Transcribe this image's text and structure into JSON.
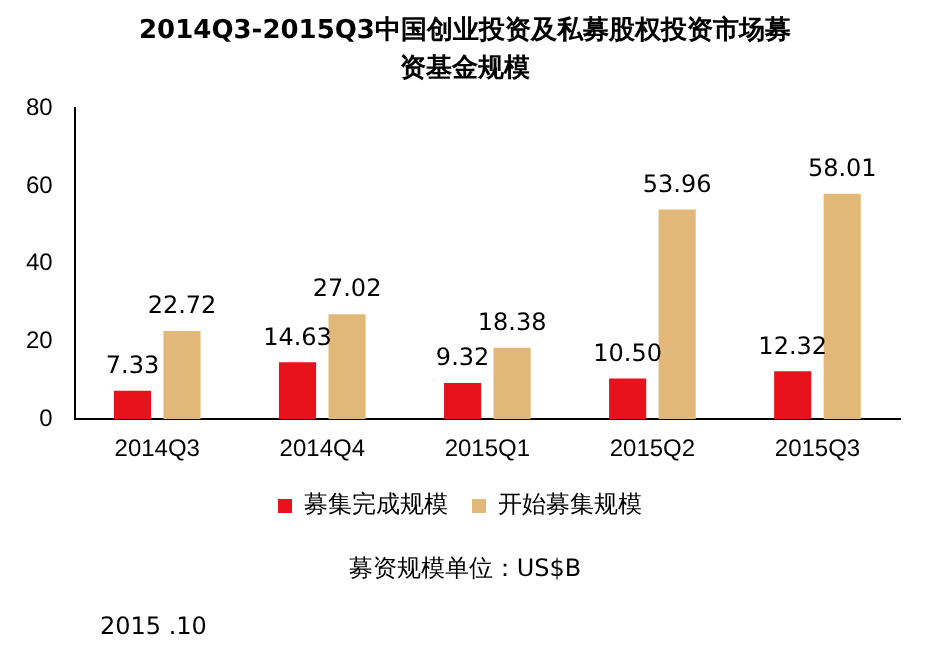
{
  "chart_data": {
    "type": "bar",
    "title": "2014Q3-2015Q3中国创业投资及私募股权投资市场募资基金规模",
    "categories": [
      "2014Q3",
      "2014Q4",
      "2015Q1",
      "2015Q2",
      "2015Q3"
    ],
    "series": [
      {
        "name": "募集完成规模",
        "color": "#e8121c",
        "values": [
          7.33,
          14.63,
          9.32,
          10.5,
          12.32
        ]
      },
      {
        "name": "开始募集规模",
        "color": "#e2b878",
        "values": [
          22.72,
          27.02,
          18.38,
          53.96,
          58.01
        ]
      }
    ],
    "value_labels": [
      [
        "7.33",
        "14.63",
        "9.32",
        "10.50",
        "12.32"
      ],
      [
        "22.72",
        "27.02",
        "18.38",
        "53.96",
        "58.01"
      ]
    ],
    "ylim": [
      0,
      80
    ],
    "yticks": [
      0,
      20,
      40,
      60,
      80
    ],
    "grid": false,
    "legend": "bottom",
    "annotations": [
      "募资规模单位：US$B",
      "2015 .10"
    ]
  }
}
